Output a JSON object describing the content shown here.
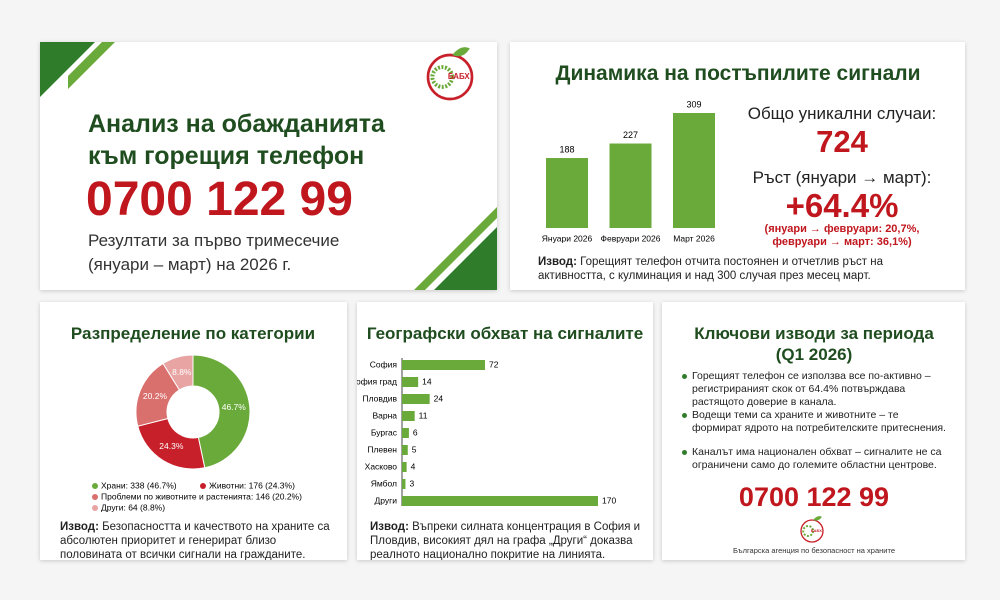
{
  "header": {
    "title_lines": [
      "Анализ на обажданията",
      "към горещия телефон"
    ],
    "phone": "0700 122 99",
    "subtitle_lines": [
      "Резултати за първо тримесечие",
      "(януари – март) на 2026 г."
    ],
    "logo": "БАБХ"
  },
  "dynamics": {
    "total_label": "Общо уникални случаи:",
    "total": 724,
    "growth_label": "Ръст (януари → март):",
    "growth": "+64.4%",
    "growth_detail_lines": [
      "(януари → февруари: 20,7%,",
      "февруари → март: 36,1%)"
    ],
    "conclusion": {
      "label": "Извод:",
      "text": "Горещият телефон отчита постоянен и отчетлив ръст на активността, с кулминация и над 300 случая през месец март."
    }
  },
  "categories_panel": {
    "conclusion": {
      "label": "Извод:",
      "text": "Безопасността и качеството на храните са абсолютен приоритет и генерират близо половината от всички сигнали на гражданите."
    }
  },
  "geography_panel": {
    "conclusion": {
      "label": "Извод:",
      "text": "Въпреки силната концентрация в София и Пловдив, високият дял на графа „Други“ доказва реалното национално покритие на линията."
    }
  },
  "key_findings": {
    "title_lines": [
      "Ключови изводи за периода",
      "(Q1 2026)"
    ],
    "bullets": [
      "Горещият телефон се използва все по-активно – регистрираният скок от 64.4% потвърждава растящото доверие в канала.",
      "Водещи теми са храните и животните – те формират ядрото на потребителските притеснения.",
      "Каналът има национален обхват – сигналите не са ограничени само до големите областни центрове."
    ],
    "phone": "0700 122 99",
    "logo": "БАБХ",
    "agency": "Българска агенция по безопасност на храните"
  },
  "chart_data": [
    {
      "type": "bar",
      "title": "Динамика на постъпилите сигнали",
      "categories": [
        "Януари 2026",
        "Февруари 2026",
        "Март 2026"
      ],
      "values": [
        188,
        227,
        309
      ],
      "color": "#6aaa3a"
    },
    {
      "type": "pie",
      "title": "Разпределение по категории",
      "values": [
        46.7,
        24.3,
        20.2,
        8.8
      ],
      "value_labels": [
        "46.7%",
        "24.3%",
        "20.2%",
        "8.8%"
      ],
      "legend_labels": [
        "Храни: 338 (46.7%)",
        "Животни: 176 (24.3%)",
        "Проблеми по животните и растенията: 146 (20.2%)",
        "Други: 64 (8.8%)"
      ],
      "colors": [
        "#6aaa3a",
        "#c8202a",
        "#d9706e",
        "#e8a3a3"
      ]
    },
    {
      "type": "hbar",
      "title": "Географски обхват на сигналите",
      "categories": [
        "София",
        "София град",
        "Пловдив",
        "Варна",
        "Бургас",
        "Плевен",
        "Хасково",
        "Ямбол",
        "Други"
      ],
      "values": [
        72,
        14,
        24,
        11,
        6,
        5,
        4,
        3,
        170
      ],
      "color": "#6aaa3a"
    }
  ]
}
